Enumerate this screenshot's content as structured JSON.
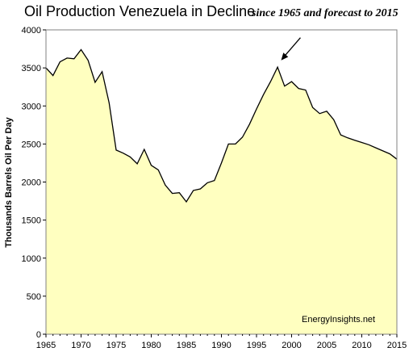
{
  "chart_data": {
    "type": "area",
    "title": "Oil Production Venezuela in Decline",
    "subtitle": "since 1965 and forecast to 2015",
    "xlabel": "",
    "ylabel": "Thousands Barrels Oil Per Day",
    "xlim": [
      1965,
      2015
    ],
    "ylim": [
      0,
      4000
    ],
    "x_ticks": [
      "1965",
      "1970",
      "1975",
      "1980",
      "1985",
      "1990",
      "1995",
      "2000",
      "2005",
      "2010",
      "2015"
    ],
    "y_ticks": [
      "0",
      "500",
      "1000",
      "1500",
      "2000",
      "2500",
      "3000",
      "3500",
      "4000"
    ],
    "grid": false,
    "legend": "none",
    "annotation": "EnergyInsights.net",
    "arrow_target": {
      "x": 1998.5,
      "y": 3600
    },
    "fill_color": "#ffffc0",
    "line_color": "#000000",
    "x": [
      1965,
      1966,
      1967,
      1968,
      1969,
      1970,
      1971,
      1972,
      1973,
      1974,
      1975,
      1976,
      1977,
      1978,
      1979,
      1980,
      1981,
      1982,
      1983,
      1984,
      1985,
      1986,
      1987,
      1988,
      1989,
      1990,
      1991,
      1992,
      1993,
      1994,
      1995,
      1996,
      1997,
      1998,
      1999,
      2000,
      2001,
      2002,
      2003,
      2004,
      2005,
      2006,
      2007,
      2008,
      2009,
      2010,
      2011,
      2012,
      2013,
      2014,
      2015
    ],
    "values": [
      3500,
      3400,
      3580,
      3630,
      3620,
      3740,
      3600,
      3310,
      3450,
      3040,
      2420,
      2380,
      2330,
      2240,
      2430,
      2220,
      2160,
      1960,
      1850,
      1860,
      1740,
      1890,
      1910,
      1990,
      2020,
      2250,
      2500,
      2500,
      2590,
      2760,
      2960,
      3150,
      3320,
      3510,
      3260,
      3320,
      3230,
      3210,
      2980,
      2900,
      2930,
      2820,
      2620,
      2580,
      2550,
      2520,
      2490,
      2450,
      2410,
      2370,
      2300
    ]
  }
}
